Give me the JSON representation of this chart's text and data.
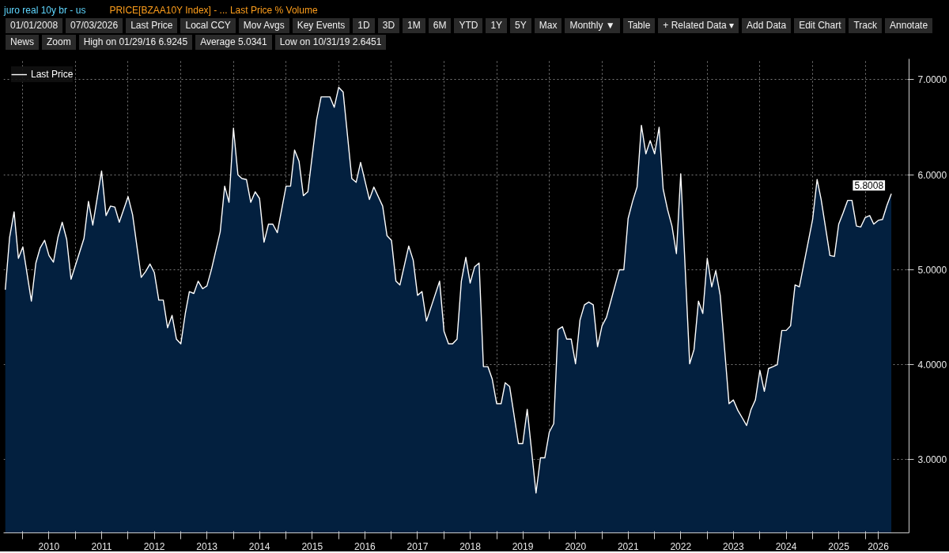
{
  "chart_data": {
    "type": "area",
    "title": "juro real 10y br - us",
    "subtitle": "PRICE[BZAA10Y Index] - ... Last Price % Volume",
    "annotations": [
      "01/01/2008",
      "07/03/2026",
      "Last Price",
      "Local CCY",
      "Mov Avgs",
      "Key Events",
      "1D",
      "3D",
      "1M",
      "6M",
      "YTD",
      "1Y",
      "5Y",
      "Max",
      "Monthly ▼",
      "Table",
      "+ Related Data ▾",
      "Add Data",
      "Edit Chart",
      "Track",
      "Annotate",
      "News",
      "Zoom",
      "High on 01/29/16 6.9245",
      "Average 5.0341",
      "Low on 10/31/19 2.6451",
      {
        "text": "5.8008",
        "x": "2026-07",
        "y": 5.8
      }
    ],
    "x": [
      "2009-09",
      "2009-10",
      "2009-11",
      "2009-12",
      "2010-01",
      "2010-03",
      "2010-04",
      "2010-05",
      "2010-06",
      "2010-07",
      "2010-08",
      "2010-09",
      "2010-10",
      "2010-11",
      "2010-12",
      "2011-03",
      "2011-04",
      "2011-05",
      "2011-07",
      "2011-08",
      "2011-09",
      "2011-10",
      "2011-11",
      "2012-01",
      "2012-02",
      "2012-04",
      "2012-05",
      "2012-06",
      "2012-07",
      "2012-08",
      "2012-09",
      "2012-10",
      "2012-11",
      "2012-12",
      "2013-01",
      "2013-02",
      "2013-03",
      "2013-04",
      "2013-05",
      "2013-06",
      "2013-07",
      "2013-08",
      "2013-10",
      "2013-11",
      "2013-12",
      "2014-01",
      "2014-02",
      "2014-03",
      "2014-04",
      "2014-05",
      "2014-06",
      "2014-07",
      "2014-08",
      "2014-09",
      "2014-10",
      "2014-11",
      "2015-01",
      "2015-02",
      "2015-03",
      "2015-04",
      "2015-05",
      "2015-06",
      "2015-08",
      "2015-09",
      "2015-11",
      "2015-12",
      "2016-01",
      "2016-02",
      "2016-04",
      "2016-05",
      "2016-06",
      "2016-08",
      "2016-09",
      "2016-11",
      "2016-12",
      "2017-01",
      "2017-02",
      "2017-03",
      "2017-05",
      "2017-06",
      "2017-07",
      "2017-08",
      "2017-09",
      "2017-12",
      "2018-01",
      "2018-02",
      "2018-03",
      "2018-04",
      "2018-05",
      "2018-06",
      "2018-07",
      "2018-08",
      "2018-09",
      "2018-10",
      "2018-11",
      "2018-12",
      "2019-01",
      "2019-02",
      "2019-03",
      "2019-04",
      "2019-06",
      "2019-07",
      "2019-08",
      "2019-10",
      "2019-11",
      "2019-12",
      "2020-01",
      "2020-02",
      "2020-03",
      "2020-04",
      "2020-05",
      "2020-06",
      "2020-07",
      "2020-08",
      "2020-09",
      "2020-10",
      "2020-11",
      "2020-12",
      "2021-01",
      "2021-02",
      "2021-05",
      "2021-06",
      "2021-07",
      "2021-08",
      "2021-09",
      "2021-10",
      "2021-11",
      "2021-12",
      "2022-01",
      "2022-02",
      "2022-03",
      "2022-04",
      "2022-05",
      "2022-06",
      "2022-07",
      "2022-09",
      "2022-10",
      "2022-11",
      "2022-12",
      "2023-01",
      "2023-02",
      "2023-03",
      "2023-04",
      "2023-06",
      "2023-07",
      "2023-08",
      "2023-09",
      "2023-10",
      "2023-11",
      "2023-12",
      "2024-01",
      "2024-02",
      "2024-03",
      "2024-04",
      "2024-05",
      "2024-06",
      "2024-07",
      "2024-08",
      "2024-09",
      "2024-10",
      "2025-01",
      "2025-02",
      "2025-03",
      "2025-05",
      "2025-06",
      "2025-07",
      "2025-08",
      "2025-09",
      "2025-10",
      "2025-11",
      "2025-12",
      "2026-01",
      "2026-02",
      "2026-03",
      "2026-04",
      "2026-05",
      "2026-06",
      "2026-07"
    ],
    "series": [
      {
        "name": "Last Price",
        "color": "#ffffff",
        "values": [
          4.79,
          5.34,
          5.61,
          5.12,
          5.24,
          4.67,
          5.07,
          5.23,
          5.31,
          5.15,
          5.08,
          5.34,
          5.5,
          5.32,
          4.9,
          5.33,
          5.72,
          5.47,
          6.04,
          5.57,
          5.67,
          5.66,
          5.5,
          5.77,
          5.58,
          4.92,
          4.98,
          5.06,
          4.97,
          4.68,
          4.68,
          4.39,
          4.52,
          4.27,
          4.22,
          4.54,
          4.77,
          4.75,
          4.88,
          4.8,
          4.83,
          5.0,
          5.4,
          5.88,
          5.71,
          6.49,
          6.0,
          5.96,
          5.95,
          5.71,
          5.82,
          5.75,
          5.29,
          5.48,
          5.48,
          5.39,
          5.88,
          5.88,
          6.26,
          6.14,
          5.78,
          5.82,
          6.58,
          6.82,
          6.82,
          6.71,
          6.92,
          6.87,
          5.96,
          5.92,
          6.13,
          5.74,
          5.87,
          5.67,
          5.36,
          5.31,
          4.88,
          4.84,
          5.25,
          5.1,
          4.73,
          4.77,
          4.46,
          4.88,
          4.35,
          4.22,
          4.22,
          4.27,
          4.88,
          5.13,
          4.86,
          5.03,
          5.07,
          3.98,
          3.98,
          3.85,
          3.59,
          3.59,
          3.81,
          3.77,
          3.17,
          3.17,
          3.53,
          2.65,
          3.02,
          3.02,
          3.29,
          3.38,
          4.37,
          4.4,
          4.27,
          4.27,
          4.01,
          4.47,
          4.63,
          4.66,
          4.63,
          4.19,
          4.41,
          4.5,
          5.0,
          5.0,
          5.54,
          5.72,
          5.87,
          6.52,
          6.22,
          6.36,
          6.22,
          6.5,
          5.85,
          5.63,
          5.46,
          5.17,
          6.01,
          4.01,
          4.16,
          4.67,
          4.54,
          5.12,
          4.82,
          4.99,
          4.73,
          3.59,
          3.63,
          3.52,
          3.44,
          3.36,
          3.53,
          3.63,
          3.94,
          3.72,
          3.96,
          3.98,
          4.0,
          4.36,
          4.36,
          4.41,
          4.84,
          4.82,
          5.53,
          5.95,
          5.74,
          5.15,
          5.14,
          5.48,
          5.6,
          5.73,
          5.73,
          5.46,
          5.45,
          5.55,
          5.57,
          5.48,
          5.52,
          5.53,
          5.68,
          5.8
        ]
      }
    ],
    "xlim": [
      "2009-08-20",
      "2026-11-01"
    ],
    "xticks": [
      {
        "value": "2010-01",
        "label": null
      },
      {
        "value": "2010-07",
        "label": "2010"
      },
      {
        "value": "2011-01",
        "label": null
      },
      {
        "value": "2011-07",
        "label": "2011"
      },
      {
        "value": "2012-01",
        "label": null
      },
      {
        "value": "2012-07",
        "label": "2012"
      },
      {
        "value": "2013-01",
        "label": null
      },
      {
        "value": "2013-07",
        "label": "2013"
      },
      {
        "value": "2014-01",
        "label": null
      },
      {
        "value": "2014-07",
        "label": "2014"
      },
      {
        "value": "2015-01",
        "label": null
      },
      {
        "value": "2015-07",
        "label": "2015"
      },
      {
        "value": "2016-01",
        "label": null
      },
      {
        "value": "2016-07",
        "label": "2016"
      },
      {
        "value": "2017-01",
        "label": null
      },
      {
        "value": "2017-07",
        "label": "2017"
      },
      {
        "value": "2018-01",
        "label": null
      },
      {
        "value": "2018-07",
        "label": "2018"
      },
      {
        "value": "2019-01",
        "label": null
      },
      {
        "value": "2019-07",
        "label": "2019"
      },
      {
        "value": "2020-01",
        "label": null
      },
      {
        "value": "2020-07",
        "label": "2020"
      },
      {
        "value": "2021-01",
        "label": null
      },
      {
        "value": "2021-07",
        "label": "2021"
      },
      {
        "value": "2022-01",
        "label": null
      },
      {
        "value": "2022-07",
        "label": "2022"
      },
      {
        "value": "2023-01",
        "label": null
      },
      {
        "value": "2023-07",
        "label": "2023"
      },
      {
        "value": "2024-01",
        "label": null
      },
      {
        "value": "2024-07",
        "label": "2024"
      },
      {
        "value": "2025-01",
        "label": null
      },
      {
        "value": "2025-07",
        "label": "2025"
      },
      {
        "value": "2026-01",
        "label": null
      },
      {
        "value": "2026-04",
        "label": "2026"
      }
    ],
    "ylim": [
      2.23,
      7.22
    ],
    "yticks": [
      {
        "value": 3,
        "label": "3.0000"
      },
      {
        "value": 4,
        "label": "4.0000"
      },
      {
        "value": 5,
        "label": "5.0000"
      },
      {
        "value": 6,
        "label": "6.0000"
      },
      {
        "value": 7,
        "label": "7.0000"
      }
    ],
    "grid": true,
    "legend": "top left",
    "line_style": "solid"
  }
}
